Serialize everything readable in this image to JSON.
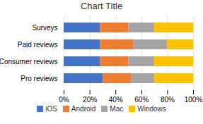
{
  "chart_data": {
    "type": "bar",
    "title": "Chart Title",
    "orientation": "horizontal",
    "stacked": true,
    "categories": [
      "Surveys",
      "Paid reviews",
      "Consumer reviews",
      "Pro reviews"
    ],
    "series": [
      {
        "name": "iOS",
        "color": "#4472C4",
        "values": [
          28,
          28,
          28,
          30
        ]
      },
      {
        "name": "Android",
        "color": "#ED7D31",
        "values": [
          22,
          26,
          22,
          22
        ]
      },
      {
        "name": "Mac",
        "color": "#A5A5A5",
        "values": [
          20,
          26,
          20,
          18
        ]
      },
      {
        "name": "Windows",
        "color": "#FFC000",
        "values": [
          30,
          20,
          30,
          30
        ]
      }
    ],
    "xlim": [
      0,
      100
    ],
    "xticks": [
      {
        "value": 0,
        "label": "0%"
      },
      {
        "value": 20,
        "label": "20%"
      },
      {
        "value": 40,
        "label": "40%"
      },
      {
        "value": 60,
        "label": "60%"
      },
      {
        "value": 80,
        "label": "80%"
      },
      {
        "value": 100,
        "label": "100%"
      }
    ],
    "grid": true,
    "legend": "bottom"
  }
}
